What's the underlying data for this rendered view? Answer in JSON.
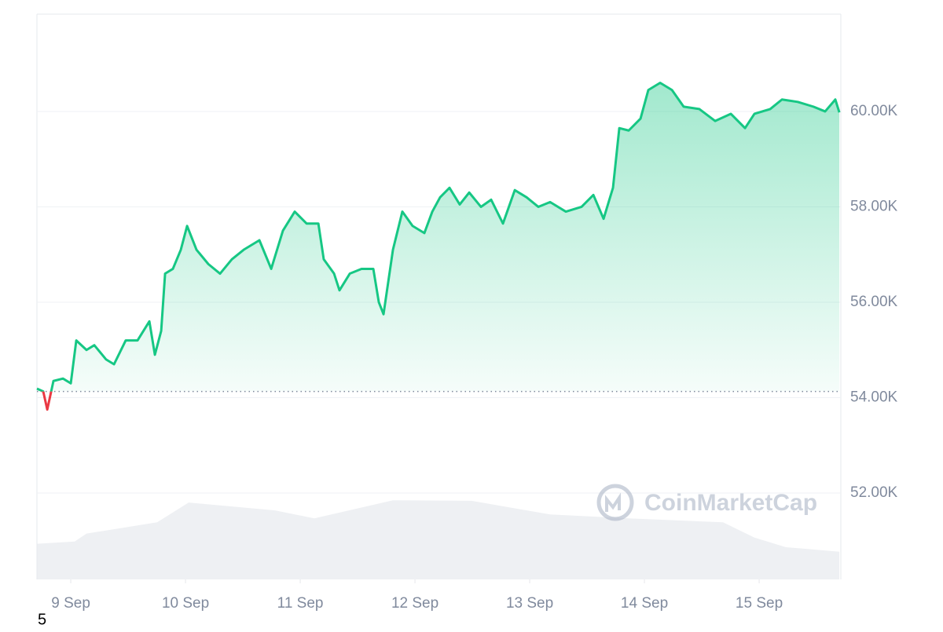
{
  "chart_data": {
    "type": "line",
    "x": [
      -0.295,
      -0.24,
      -0.205,
      -0.151,
      -0.068,
      0,
      0.048,
      0.137,
      0.205,
      0.308,
      0.377,
      0.479,
      0.582,
      0.685,
      0.733,
      0.788,
      0.822,
      0.89,
      0.959,
      1.014,
      1.096,
      1.199,
      1.301,
      1.404,
      1.507,
      1.644,
      1.747,
      1.849,
      1.952,
      2.055,
      2.158,
      2.205,
      2.295,
      2.342,
      2.432,
      2.534,
      2.637,
      2.685,
      2.726,
      2.808,
      2.89,
      2.979,
      3.082,
      3.151,
      3.219,
      3.301,
      3.39,
      3.473,
      3.575,
      3.664,
      3.767,
      3.87,
      3.973,
      4.075,
      4.178,
      4.315,
      4.452,
      4.555,
      4.644,
      4.726,
      4.781,
      4.863,
      4.966,
      5.034,
      5.137,
      5.24,
      5.342,
      5.479,
      5.616,
      5.753,
      5.877,
      5.959,
      6.096,
      6.199,
      6.336,
      6.473,
      6.575,
      6.664,
      6.699
    ],
    "series": [
      {
        "name": "Price",
        "up_color": "#16c784",
        "down_color": "#ea3943",
        "values": [
          54190,
          54130,
          53750,
          54350,
          54400,
          54300,
          55200,
          55000,
          55100,
          54800,
          54700,
          55200,
          55200,
          55600,
          54900,
          55400,
          56600,
          56700,
          57100,
          57600,
          57100,
          56800,
          56600,
          56900,
          57100,
          57300,
          56700,
          57500,
          57900,
          57650,
          57650,
          56900,
          56600,
          56250,
          56600,
          56700,
          56700,
          56000,
          55750,
          57100,
          57900,
          57600,
          57450,
          57900,
          58200,
          58400,
          58050,
          58300,
          58000,
          58150,
          57650,
          58350,
          58200,
          58000,
          58100,
          57900,
          58000,
          58250,
          57750,
          58400,
          59650,
          59600,
          59850,
          60450,
          60600,
          60450,
          60100,
          60050,
          59800,
          59950,
          59650,
          59950,
          60050,
          60250,
          60200,
          60100,
          60000,
          60250,
          59980
        ]
      }
    ],
    "volume": {
      "color": "#eef0f3",
      "x": [
        -0.295,
        0.034,
        0.137,
        0.753,
        1.027,
        1.781,
        2.123,
        2.808,
        3.493,
        4.178,
        4.863,
        5.685,
        5.959,
        6.233,
        6.699
      ],
      "values": [
        6.3,
        6.7,
        8.1,
        10.1,
        13.6,
        12.2,
        10.8,
        14.0,
        13.9,
        11.5,
        10.8,
        10.1,
        7.4,
        5.7,
        4.9
      ],
      "y2lim": [
        0,
        100
      ]
    },
    "baseline": 54130,
    "xlim": [
      -0.295,
      6.712
    ],
    "xticks": [
      {
        "value": 0,
        "label": "9 Sep"
      },
      {
        "value": 1,
        "label": "10 Sep"
      },
      {
        "value": 2,
        "label": "11 Sep"
      },
      {
        "value": 3,
        "label": "12 Sep"
      },
      {
        "value": 4,
        "label": "13 Sep"
      },
      {
        "value": 5,
        "label": "14 Sep"
      },
      {
        "value": 6,
        "label": "15 Sep"
      }
    ],
    "ylim": [
      50190,
      62040
    ],
    "yticks": [
      {
        "value": 52000,
        "label": "52.00K"
      },
      {
        "value": 54000,
        "label": "54.00K"
      },
      {
        "value": 56000,
        "label": "56.00K"
      },
      {
        "value": 58000,
        "label": "58.00K"
      },
      {
        "value": 60000,
        "label": "60.00K"
      }
    ],
    "grid": true,
    "watermark": "CoinMarketCap",
    "footnote": "5"
  }
}
